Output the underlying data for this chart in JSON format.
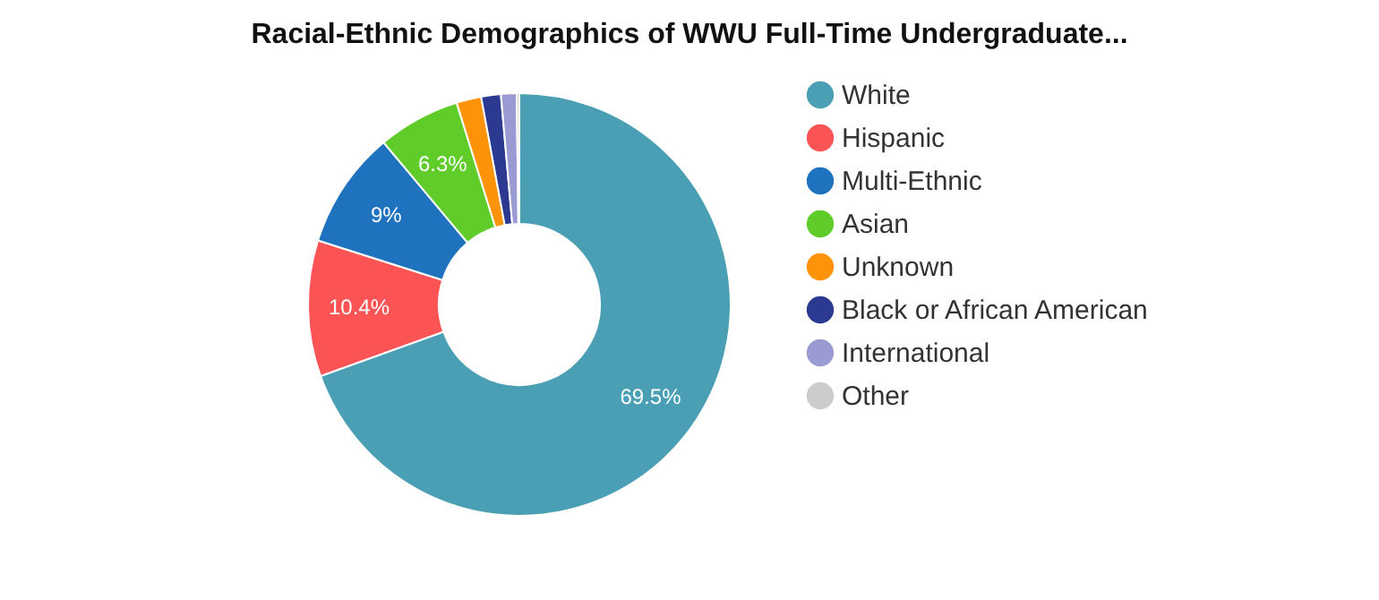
{
  "chart_data": {
    "type": "donut",
    "title": "Racial-Ethnic Demographics of WWU Full-Time Undergraduate...",
    "categories": [
      "White",
      "Hispanic",
      "Multi-Ethnic",
      "Asian",
      "Unknown",
      "Black or African American",
      "International",
      "Other"
    ],
    "values": [
      69.5,
      10.4,
      9,
      6.3,
      1.9,
      1.5,
      1.2,
      0.2
    ],
    "colors": [
      "#4a9fb5",
      "#fc5355",
      "#1f72bd",
      "#5fcc2a",
      "#fd9308",
      "#2b3990",
      "#9b9bd3",
      "#cccccc"
    ],
    "value_labels": [
      "69.5%",
      "10.4%",
      "9%",
      "6.3%",
      null,
      null,
      null,
      null
    ],
    "legend": "right"
  }
}
